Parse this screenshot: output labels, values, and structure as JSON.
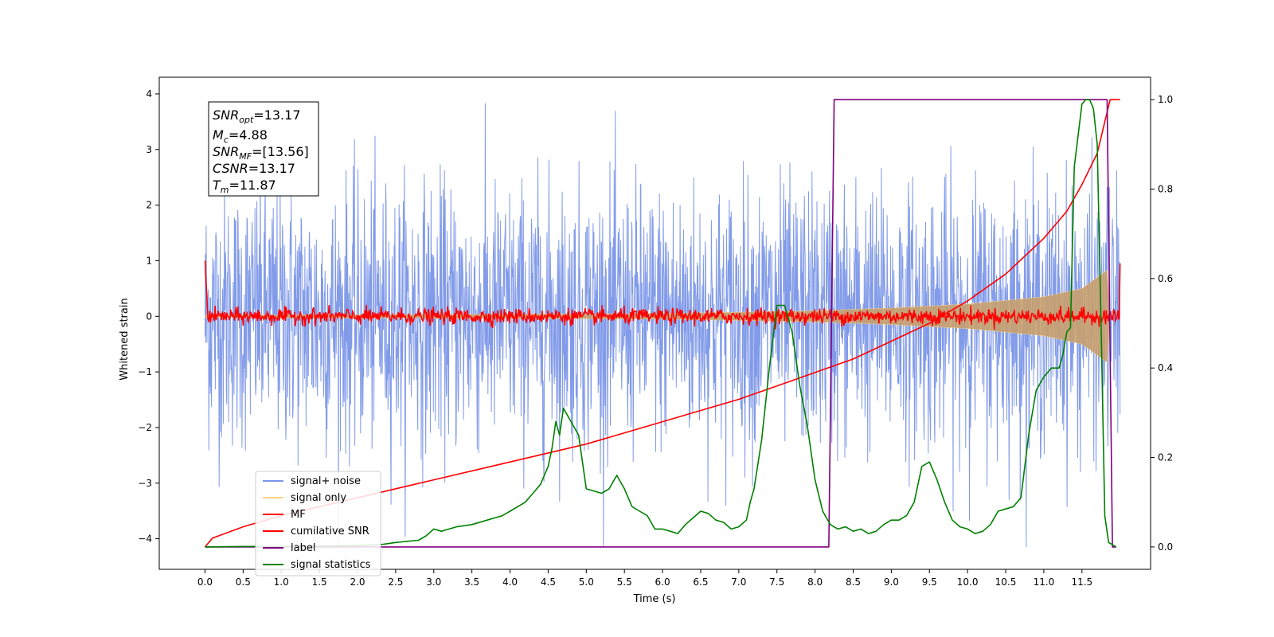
{
  "chart_data": {
    "type": "line",
    "xlabel": "Time (s)",
    "ylabel": "Whitened strain",
    "xlim": [
      -0.6,
      12.4
    ],
    "ylim": [
      -4.55,
      4.3
    ],
    "ylim_right": [
      -0.05,
      1.05
    ],
    "x_ticks": [
      "0.0",
      "0.5",
      "1.0",
      "1.5",
      "2.0",
      "2.5",
      "3.0",
      "3.5",
      "4.0",
      "4.5",
      "5.0",
      "5.5",
      "6.0",
      "6.5",
      "7.0",
      "7.5",
      "8.0",
      "8.5",
      "9.0",
      "9.5",
      "10.0",
      "10.5",
      "11.0",
      "11.5"
    ],
    "y_ticks": [
      "4",
      "3",
      "2",
      "1",
      "0",
      "−1",
      "−2",
      "−3",
      "−4"
    ],
    "y_ticks_right": [
      "1.0",
      "0.8",
      "0.6",
      "0.4",
      "0.2",
      "0.0"
    ],
    "grid": false,
    "legend_position": "lower-left",
    "annotation": {
      "snr_opt": {
        "name": "SNR",
        "sub": "opt",
        "value": "=13.17"
      },
      "mc": {
        "name": "M",
        "sub": "c",
        "value": "=4.88"
      },
      "snr_mf": {
        "name": "SNR",
        "sub": "MF",
        "value": "=[13.56]"
      },
      "csnr": {
        "name": "CSNR",
        "sub": "",
        "value": "=13.17"
      },
      "tm": {
        "name": "T",
        "sub": "m",
        "value": "=11.87"
      }
    },
    "series": [
      {
        "name": "signal+ noise",
        "color": "#7b96e8",
        "axis": "left",
        "x_range": [
          0.0,
          12.0
        ],
        "amplitude_typical": 1.3,
        "max": 3.9,
        "min": -4.15
      },
      {
        "name": "signal only",
        "color": "#ffd27f",
        "axis": "left",
        "envelope": {
          "x": [
            0,
            6,
            8,
            9,
            10,
            11,
            11.5,
            11.85,
            11.87
          ],
          "amp": [
            0.02,
            0.05,
            0.1,
            0.15,
            0.22,
            0.35,
            0.5,
            0.85,
            0.0
          ]
        }
      },
      {
        "name": "MF",
        "color": "#ff0000",
        "axis": "left",
        "start": 1.0,
        "noise_amplitude": 0.07,
        "end": 0.95
      },
      {
        "name": "cumilative SNR",
        "color": "#ff0000",
        "axis": "right",
        "x": [
          0.0,
          0.1,
          0.5,
          1.0,
          2.0,
          3.0,
          4.0,
          5.0,
          6.0,
          7.0,
          7.5,
          8.0,
          8.5,
          9.0,
          9.5,
          10.0,
          10.5,
          11.0,
          11.3,
          11.5,
          11.7,
          11.87,
          12.0
        ],
        "values": [
          0.0,
          0.02,
          0.045,
          0.07,
          0.11,
          0.15,
          0.19,
          0.23,
          0.28,
          0.33,
          0.36,
          0.39,
          0.42,
          0.46,
          0.5,
          0.55,
          0.61,
          0.69,
          0.75,
          0.81,
          0.88,
          1.0,
          1.0
        ]
      },
      {
        "name": "label",
        "color": "#800080",
        "axis": "right",
        "x": [
          0.0,
          8.18,
          8.25,
          11.83,
          11.9,
          11.95
        ],
        "values": [
          0.0,
          0.0,
          1.0,
          1.0,
          0.0,
          0.0
        ]
      },
      {
        "name": "signal statistics",
        "color": "#008000",
        "axis": "right",
        "x": [
          0.0,
          0.5,
          1.0,
          1.5,
          2.0,
          2.3,
          2.5,
          2.8,
          2.9,
          3.0,
          3.1,
          3.2,
          3.3,
          3.5,
          3.7,
          3.8,
          3.9,
          4.0,
          4.2,
          4.3,
          4.4,
          4.5,
          4.55,
          4.6,
          4.65,
          4.7,
          4.8,
          4.9,
          5.0,
          5.2,
          5.3,
          5.4,
          5.5,
          5.6,
          5.7,
          5.8,
          5.9,
          6.0,
          6.1,
          6.2,
          6.3,
          6.4,
          6.5,
          6.6,
          6.7,
          6.8,
          6.9,
          7.0,
          7.1,
          7.15,
          7.2,
          7.3,
          7.4,
          7.5,
          7.6,
          7.7,
          7.8,
          7.9,
          8.0,
          8.1,
          8.2,
          8.3,
          8.4,
          8.5,
          8.6,
          8.7,
          8.8,
          8.9,
          9.0,
          9.1,
          9.2,
          9.3,
          9.4,
          9.5,
          9.6,
          9.7,
          9.8,
          9.9,
          10.0,
          10.1,
          10.2,
          10.3,
          10.4,
          10.5,
          10.6,
          10.7,
          10.8,
          10.9,
          11.0,
          11.1,
          11.2,
          11.25,
          11.3,
          11.35,
          11.4,
          11.45,
          11.5,
          11.55,
          11.6,
          11.65,
          11.7,
          11.75,
          11.8,
          11.85,
          11.9,
          11.95
        ],
        "values": [
          0.0,
          0.001,
          0.001,
          0.002,
          0.003,
          0.005,
          0.01,
          0.015,
          0.025,
          0.04,
          0.035,
          0.04,
          0.045,
          0.05,
          0.06,
          0.065,
          0.07,
          0.08,
          0.1,
          0.12,
          0.14,
          0.18,
          0.22,
          0.28,
          0.25,
          0.31,
          0.28,
          0.25,
          0.13,
          0.12,
          0.13,
          0.16,
          0.13,
          0.09,
          0.08,
          0.07,
          0.04,
          0.04,
          0.035,
          0.03,
          0.05,
          0.065,
          0.08,
          0.075,
          0.06,
          0.055,
          0.04,
          0.045,
          0.06,
          0.1,
          0.13,
          0.24,
          0.4,
          0.54,
          0.54,
          0.48,
          0.36,
          0.27,
          0.15,
          0.08,
          0.05,
          0.04,
          0.045,
          0.035,
          0.04,
          0.03,
          0.035,
          0.05,
          0.06,
          0.06,
          0.07,
          0.1,
          0.18,
          0.19,
          0.15,
          0.1,
          0.06,
          0.045,
          0.04,
          0.03,
          0.035,
          0.05,
          0.08,
          0.085,
          0.09,
          0.11,
          0.25,
          0.35,
          0.38,
          0.4,
          0.4,
          0.43,
          0.48,
          0.49,
          0.85,
          0.92,
          0.99,
          1.0,
          1.0,
          0.98,
          0.9,
          0.5,
          0.07,
          0.01,
          0.005,
          0.0
        ]
      }
    ]
  }
}
